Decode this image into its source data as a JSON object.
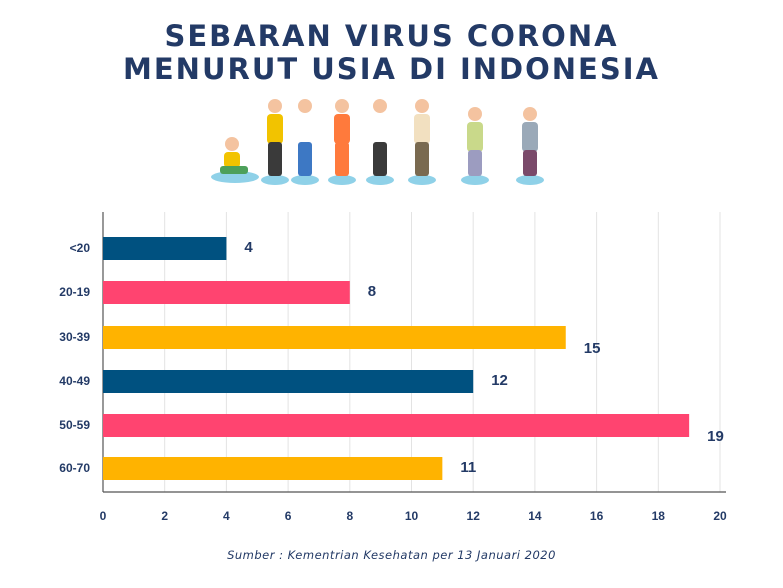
{
  "title_line1": "SEBARAN VIRUS CORONA",
  "title_line2": "MENURUT USIA DI INDONESIA",
  "illustration": "people-of-increasing-age-icons",
  "source": "Sumber : Kementrian Kesehatan per 13 Januari 2020",
  "chart_data": {
    "type": "bar",
    "orientation": "horizontal",
    "categories": [
      "<20",
      "20-19",
      "30-39",
      "40-49",
      "50-59",
      "60-70"
    ],
    "values": [
      4,
      8,
      15,
      12,
      19,
      11
    ],
    "data_labels": [
      "4",
      "8",
      "15",
      "12",
      "19",
      "11"
    ],
    "colors": [
      "#005180",
      "#ff4470",
      "#ffb300",
      "#005180",
      "#ff4470",
      "#ffb300"
    ],
    "xlim": [
      0,
      20
    ],
    "xticks": [
      "0",
      "2",
      "4",
      "6",
      "8",
      "10",
      "12",
      "14",
      "16",
      "18",
      "20"
    ],
    "grid": true,
    "text_color": "#233a66"
  }
}
